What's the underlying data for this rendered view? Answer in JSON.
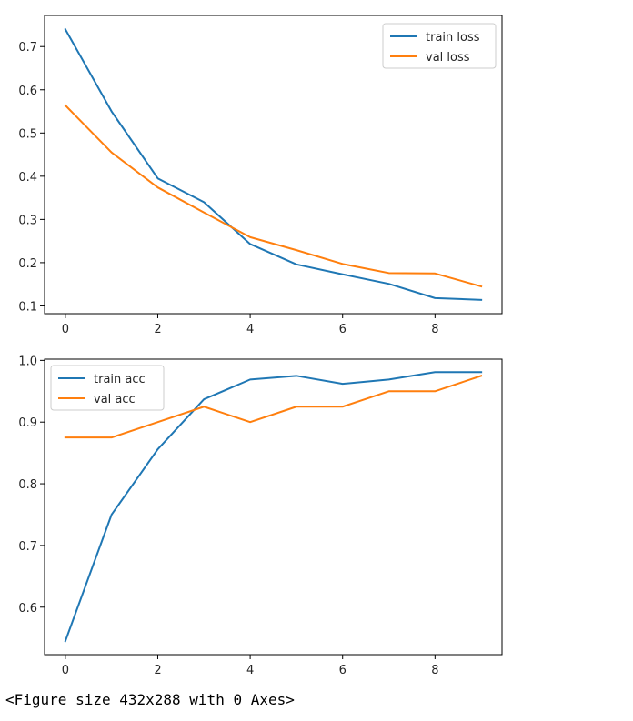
{
  "chart_data": [
    {
      "type": "line",
      "x": [
        0,
        1,
        2,
        3,
        4,
        5,
        6,
        7,
        8,
        9
      ],
      "series": [
        {
          "name": "train loss",
          "color": "#1f77b4",
          "values": [
            0.74,
            0.55,
            0.395,
            0.34,
            0.243,
            0.196,
            0.173,
            0.151,
            0.118,
            0.114
          ]
        },
        {
          "name": "val loss",
          "color": "#ff7f0e",
          "values": [
            0.564,
            0.455,
            0.374,
            0.316,
            0.259,
            0.229,
            0.197,
            0.176,
            0.175,
            0.145
          ]
        }
      ],
      "xticks": [
        0,
        2,
        4,
        6,
        8
      ],
      "xtick_labels": [
        "0",
        "2",
        "4",
        "6",
        "8"
      ],
      "yticks": [
        0.1,
        0.2,
        0.3,
        0.4,
        0.5,
        0.6,
        0.7
      ],
      "ytick_labels": [
        "0.1",
        "0.2",
        "0.3",
        "0.4",
        "0.5",
        "0.6",
        "0.7"
      ],
      "xlim": [
        -0.45,
        9.45
      ],
      "ylim": [
        0.082,
        0.772
      ],
      "legend_loc": "upper right",
      "title": "",
      "xlabel": "",
      "ylabel": ""
    },
    {
      "type": "line",
      "x": [
        0,
        1,
        2,
        3,
        4,
        5,
        6,
        7,
        8,
        9
      ],
      "series": [
        {
          "name": "train acc",
          "color": "#1f77b4",
          "values": [
            0.545,
            0.75,
            0.856,
            0.937,
            0.969,
            0.975,
            0.962,
            0.969,
            0.981,
            0.981
          ]
        },
        {
          "name": "val acc",
          "color": "#ff7f0e",
          "values": [
            0.875,
            0.875,
            0.9,
            0.925,
            0.9,
            0.925,
            0.925,
            0.95,
            0.95,
            0.975
          ]
        }
      ],
      "xticks": [
        0,
        2,
        4,
        6,
        8
      ],
      "xtick_labels": [
        "0",
        "2",
        "4",
        "6",
        "8"
      ],
      "yticks": [
        0.6,
        0.7,
        0.8,
        0.9,
        1.0
      ],
      "ytick_labels": [
        "0.6",
        "0.7",
        "0.8",
        "0.9",
        "1.0"
      ],
      "xlim": [
        -0.45,
        9.45
      ],
      "ylim": [
        0.523,
        1.002
      ],
      "legend_loc": "upper left",
      "title": "",
      "xlabel": "",
      "ylabel": ""
    }
  ],
  "caption": "<Figure size 432x288 with 0 Axes>"
}
